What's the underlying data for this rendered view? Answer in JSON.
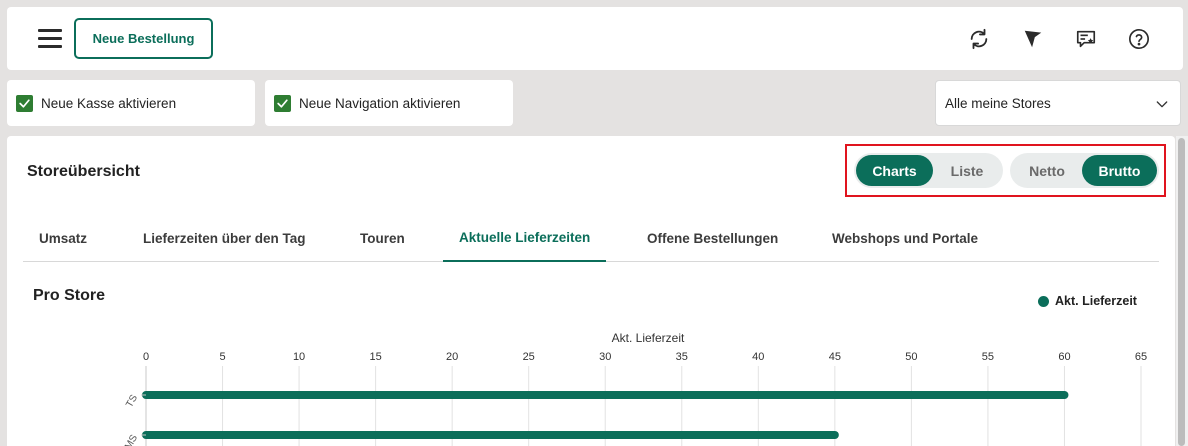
{
  "topbar": {
    "menu_icon": "hamburger-icon",
    "new_order_label": "Neue Bestellung",
    "icons": [
      "refresh-icon",
      "flag-icon",
      "feedback-icon",
      "help-icon"
    ]
  },
  "options": {
    "new_register": {
      "label": "Neue Kasse aktivieren",
      "checked": true
    },
    "new_navigation": {
      "label": "Neue Navigation aktivieren",
      "checked": true
    }
  },
  "store_select": {
    "value": "Alle meine Stores"
  },
  "overview": {
    "title": "Storeübersicht",
    "view_toggle": {
      "charts": "Charts",
      "list": "Liste",
      "active": "Charts"
    },
    "price_toggle": {
      "net": "Netto",
      "gross": "Brutto",
      "active": "Brutto"
    },
    "tabs": [
      {
        "label": "Umsatz",
        "active": false
      },
      {
        "label": "Lieferzeiten über den Tag",
        "active": false
      },
      {
        "label": "Touren",
        "active": false
      },
      {
        "label": "Aktuelle Lieferzeiten",
        "active": true
      },
      {
        "label": "Offene Bestellungen",
        "active": false
      },
      {
        "label": "Webshops und Portale",
        "active": false
      }
    ],
    "store_name": "Pro Store"
  },
  "colors": {
    "accent": "#0b6e5a",
    "checkbox": "#2e7d32",
    "highlight": "#e0141e"
  },
  "chart_data": {
    "type": "bar",
    "orientation": "horizontal",
    "xlabel": "Akt. Lieferzeit",
    "xlim": [
      0,
      65
    ],
    "xticks": [
      0,
      5,
      10,
      15,
      20,
      25,
      30,
      35,
      40,
      45,
      50,
      55,
      60,
      65
    ],
    "categories": [
      "TS",
      "SMS"
    ],
    "series": [
      {
        "name": "Akt. Lieferzeit",
        "values": [
          60,
          45
        ]
      }
    ],
    "legend": "top-right",
    "grid": true
  }
}
